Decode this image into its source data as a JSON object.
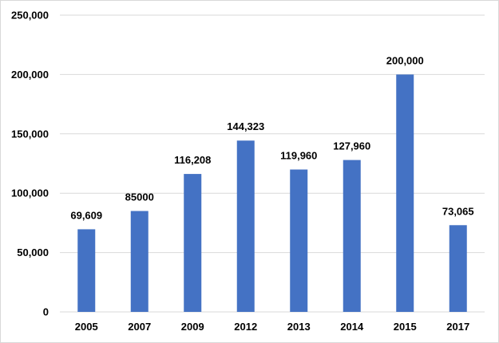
{
  "chart_data": {
    "type": "bar",
    "title": "",
    "xlabel": "",
    "ylabel": "",
    "categories": [
      "2005",
      "2007",
      "2009",
      "2012",
      "2013",
      "2014",
      "2015",
      "2017"
    ],
    "values": [
      69609,
      85000,
      116208,
      144323,
      119960,
      127960,
      200000,
      73065
    ],
    "data_labels": [
      "69,609",
      "85000",
      "116,208",
      "144,323",
      "119,960",
      "127,960",
      "200,000",
      "73,065"
    ],
    "ylim": [
      0,
      250000
    ],
    "yticks": [
      0,
      50000,
      100000,
      150000,
      200000,
      250000
    ],
    "ytick_labels": [
      "0",
      "50,000",
      "100,000",
      "150,000",
      "200,000",
      "250,000"
    ],
    "grid": true,
    "legend": "none",
    "bar_color": "#4472C4",
    "grid_color": "#d9d9d9"
  }
}
